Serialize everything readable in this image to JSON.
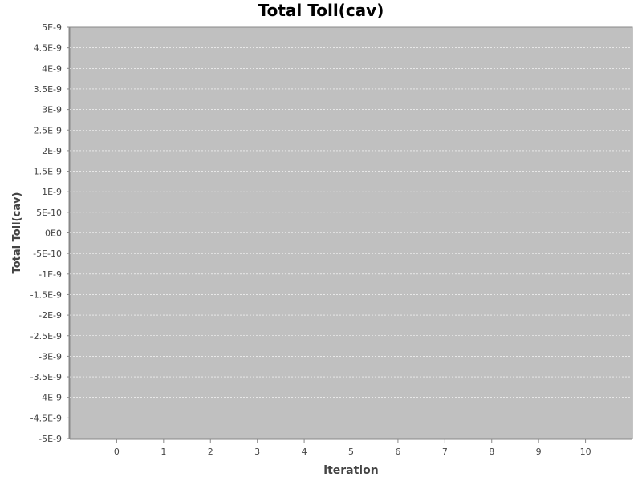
{
  "chart_data": {
    "type": "line",
    "title": "Total Toll(cav)",
    "xlabel": "iteration",
    "ylabel": "Total Toll(cav)",
    "x_ticks": [
      "0",
      "1",
      "2",
      "3",
      "4",
      "5",
      "6",
      "7",
      "8",
      "9",
      "10"
    ],
    "x_range": [
      -1,
      11
    ],
    "y_ticks": [
      "5E-9",
      "4.5E-9",
      "4E-9",
      "3.5E-9",
      "3E-9",
      "2.5E-9",
      "2E-9",
      "1.5E-9",
      "1E-9",
      "5E-10",
      "0E0",
      "-5E-10",
      "-1E-9",
      "-1.5E-9",
      "-2E-9",
      "-2.5E-9",
      "-3E-9",
      "-3.5E-9",
      "-4E-9",
      "-4.5E-9",
      "-5E-9"
    ],
    "ylim": [
      -5e-09,
      5e-09
    ],
    "series": [],
    "grid": true,
    "colors": {
      "plot_background": "#c0c0c0",
      "gridline": "#ffffff",
      "axis": "#888888",
      "text": "#444444"
    }
  }
}
